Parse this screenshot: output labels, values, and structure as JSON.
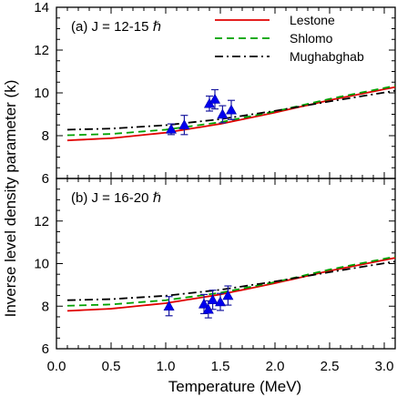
{
  "chart_data": {
    "type": "line",
    "xlabel": "Temperature (MeV)",
    "ylabel": "Inverse level density parameter (k)",
    "xlim": [
      0.0,
      3.1
    ],
    "ylim": [
      6,
      14
    ],
    "xticks": [
      "0.0",
      "0.5",
      "1.0",
      "1.5",
      "2.0",
      "2.5",
      "3.0"
    ],
    "yticks_top": [
      "6",
      "8",
      "10",
      "12",
      "14"
    ],
    "yticks_bottom": [
      "6",
      "8",
      "10",
      "12"
    ],
    "grid": false,
    "legend": {
      "placement": "top-right of upper panel",
      "entries": [
        {
          "name": "Lestone",
          "color": "#e00000",
          "dash": "solid"
        },
        {
          "name": "Shlomo",
          "color": "#00a000",
          "dash": "dashed"
        },
        {
          "name": "Mughabghab",
          "color": "#000000",
          "dash": "dashdot"
        }
      ]
    },
    "panels": [
      {
        "label": "(a) J = 12-15 ℏ",
        "series": [
          {
            "name": "Lestone",
            "x": [
              0.1,
              0.5,
              1.0,
              1.5,
              2.0,
              2.5,
              3.1
            ],
            "y": [
              7.78,
              7.88,
              8.14,
              8.55,
              9.08,
              9.66,
              10.27
            ]
          },
          {
            "name": "Shlomo",
            "x": [
              0.1,
              0.5,
              1.0,
              1.5,
              2.0,
              2.5,
              3.1
            ],
            "y": [
              8.02,
              8.08,
              8.28,
              8.63,
              9.13,
              9.72,
              10.33
            ]
          },
          {
            "name": "Mughabghab",
            "x": [
              0.1,
              0.5,
              1.0,
              1.5,
              2.0,
              2.5,
              3.1
            ],
            "y": [
              8.28,
              8.33,
              8.49,
              8.77,
              9.16,
              9.6,
              10.1
            ]
          }
        ],
        "points": [
          {
            "x": 1.05,
            "y": 8.3,
            "err": 0.25
          },
          {
            "x": 1.17,
            "y": 8.5,
            "err": 0.45
          },
          {
            "x": 1.4,
            "y": 9.5,
            "err": 0.35
          },
          {
            "x": 1.45,
            "y": 9.7,
            "err": 0.45
          },
          {
            "x": 1.52,
            "y": 9.0,
            "err": 0.4
          },
          {
            "x": 1.6,
            "y": 9.2,
            "err": 0.45
          }
        ]
      },
      {
        "label": "(b) J = 16-20 ℏ",
        "series": [
          {
            "name": "Lestone",
            "x": [
              0.1,
              0.5,
              1.0,
              1.5,
              2.0,
              2.5,
              3.1
            ],
            "y": [
              7.78,
              7.88,
              8.14,
              8.55,
              9.08,
              9.66,
              10.27
            ]
          },
          {
            "name": "Shlomo",
            "x": [
              0.1,
              0.5,
              1.0,
              1.5,
              2.0,
              2.5,
              3.1
            ],
            "y": [
              8.02,
              8.08,
              8.28,
              8.63,
              9.13,
              9.72,
              10.33
            ]
          },
          {
            "name": "Mughabghab",
            "x": [
              0.1,
              0.5,
              1.0,
              1.5,
              2.0,
              2.5,
              3.1
            ],
            "y": [
              8.28,
              8.33,
              8.49,
              8.77,
              9.16,
              9.6,
              10.1
            ]
          }
        ],
        "points": [
          {
            "x": 1.03,
            "y": 8.0,
            "err": 0.45
          },
          {
            "x": 1.35,
            "y": 8.1,
            "err": 0.45
          },
          {
            "x": 1.39,
            "y": 7.85,
            "err": 0.4
          },
          {
            "x": 1.43,
            "y": 8.3,
            "err": 0.45
          },
          {
            "x": 1.5,
            "y": 8.2,
            "err": 0.4
          },
          {
            "x": 1.57,
            "y": 8.5,
            "err": 0.45
          }
        ]
      }
    ]
  }
}
